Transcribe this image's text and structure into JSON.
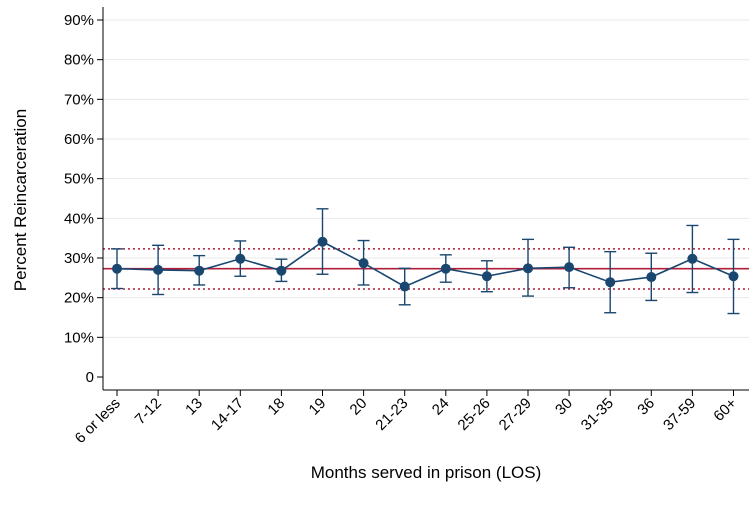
{
  "chart_data": {
    "type": "line",
    "title": "",
    "xlabel": "Months served in prison (LOS)",
    "ylabel": "Percent Reincarceration",
    "categories": [
      "6 or less",
      "7-12",
      "13",
      "14-17",
      "18",
      "19",
      "20",
      "21-23",
      "24",
      "25-26",
      "27-29",
      "30",
      "31-35",
      "36",
      "37-59",
      "60+"
    ],
    "series": [
      {
        "values": [
          27.3,
          27.0,
          26.8,
          29.8,
          26.8,
          34.1,
          28.7,
          22.8,
          27.3,
          25.4,
          27.4,
          27.7,
          23.9,
          25.2,
          29.8,
          25.4
        ],
        "ci_lower": [
          22.3,
          20.8,
          23.2,
          25.4,
          24.1,
          25.9,
          23.2,
          18.2,
          23.9,
          21.5,
          20.4,
          22.5,
          16.2,
          19.3,
          21.3,
          16.0
        ],
        "ci_upper": [
          32.3,
          33.2,
          30.6,
          34.3,
          29.7,
          42.4,
          34.4,
          27.4,
          30.8,
          29.3,
          34.7,
          32.7,
          31.6,
          31.2,
          38.2,
          34.7
        ]
      }
    ],
    "reference_lines": {
      "mean": 27.3,
      "lower": 22.2,
      "upper": 32.3
    },
    "y_ticks": [
      "0",
      "10%",
      "20%",
      "30%",
      "40%",
      "50%",
      "60%",
      "70%",
      "80%",
      "90%"
    ],
    "ylim": [
      0,
      90
    ],
    "grid": true,
    "colors": {
      "series": "#1a476f",
      "mean_line": "#b01e3a",
      "band_lines": "#b01e3a",
      "grid": "#eaeaea",
      "axis": "#000000"
    }
  }
}
